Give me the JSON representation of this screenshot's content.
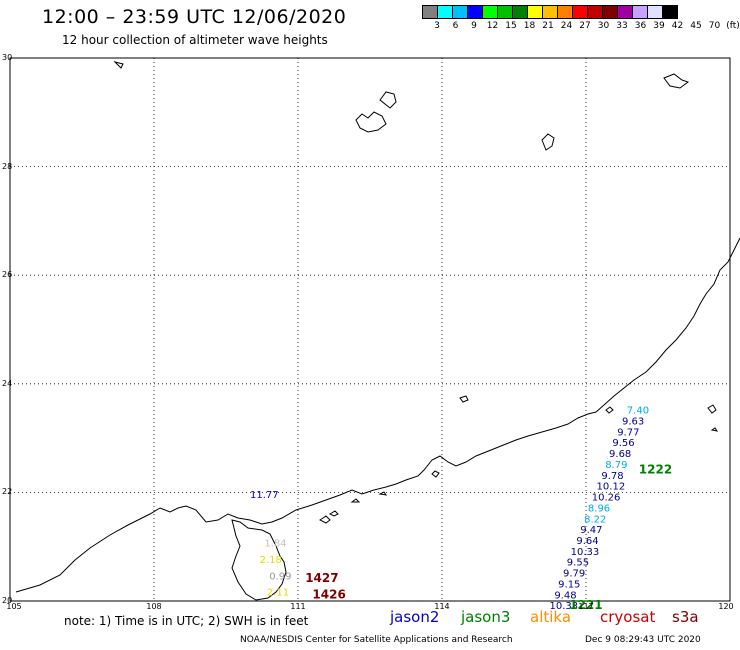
{
  "header": {
    "title": "12:00 – 23:59 UTC 12/06/2020",
    "subtitle": "12 hour collection of altimeter wave heights"
  },
  "legend": {
    "colors": [
      "#808080",
      "#00ffff",
      "#00bfff",
      "#0000ff",
      "#00ff00",
      "#00c000",
      "#008000",
      "#ffff00",
      "#ffc000",
      "#ff8000",
      "#ff0000",
      "#c00000",
      "#800000",
      "#a000a0",
      "#c8a0ff",
      "#e0e0ff",
      "#000000"
    ],
    "labels": [
      "3",
      "6",
      "9",
      "12",
      "15",
      "18",
      "21",
      "24",
      "27",
      "30",
      "33",
      "36",
      "39",
      "42",
      "45",
      "70",
      "(ft)"
    ]
  },
  "axes": {
    "lat_labels": [
      "30",
      "28",
      "26",
      "24",
      "22",
      "20"
    ],
    "lon_labels": [
      "105",
      "108",
      "111",
      "114",
      "117",
      "120"
    ]
  },
  "chart_data": {
    "type": "scatter",
    "xlim": [
      105,
      120
    ],
    "ylim": [
      20,
      30
    ],
    "wave_labels": [
      {
        "text": "7.40",
        "lon": 117.85,
        "lat": 23.45,
        "color": "#00aaee"
      },
      {
        "text": "9.63",
        "lon": 117.75,
        "lat": 23.25,
        "color": "#00008b"
      },
      {
        "text": "9.77",
        "lon": 117.65,
        "lat": 23.05,
        "color": "#00008b"
      },
      {
        "text": "9.56",
        "lon": 117.55,
        "lat": 22.85,
        "color": "#00008b"
      },
      {
        "text": "9.68",
        "lon": 117.48,
        "lat": 22.65,
        "color": "#00008b"
      },
      {
        "text": "8.79",
        "lon": 117.4,
        "lat": 22.45,
        "color": "#00aaee"
      },
      {
        "text": "9.78",
        "lon": 117.32,
        "lat": 22.25,
        "color": "#00008b"
      },
      {
        "text": "10.12",
        "lon": 117.22,
        "lat": 22.05,
        "color": "#00008b"
      },
      {
        "text": "10.26",
        "lon": 117.12,
        "lat": 21.85,
        "color": "#00008b"
      },
      {
        "text": "8.96",
        "lon": 117.04,
        "lat": 21.65,
        "color": "#00aaee"
      },
      {
        "text": "8.22",
        "lon": 116.96,
        "lat": 21.45,
        "color": "#00aaee"
      },
      {
        "text": "9.47",
        "lon": 116.88,
        "lat": 21.25,
        "color": "#00008b"
      },
      {
        "text": "9.64",
        "lon": 116.8,
        "lat": 21.05,
        "color": "#00008b"
      },
      {
        "text": "10.33",
        "lon": 116.68,
        "lat": 20.85,
        "color": "#00008b"
      },
      {
        "text": "9.55",
        "lon": 116.6,
        "lat": 20.65,
        "color": "#00008b"
      },
      {
        "text": "9.79",
        "lon": 116.52,
        "lat": 20.45,
        "color": "#00008b"
      },
      {
        "text": "9.15",
        "lon": 116.42,
        "lat": 20.25,
        "color": "#00008b"
      },
      {
        "text": "9.48",
        "lon": 116.34,
        "lat": 20.05,
        "color": "#00008b"
      },
      {
        "text": "10.33",
        "lon": 116.24,
        "lat": 19.85,
        "color": "#00008b"
      },
      {
        "text": "11.77",
        "lon": 110.0,
        "lat": 21.9,
        "color": "#0000cc"
      },
      {
        "text": "1.84",
        "lon": 110.3,
        "lat": 21.0,
        "color": "#c0c0c0"
      },
      {
        "text": "2.18",
        "lon": 110.2,
        "lat": 20.7,
        "color": "#dddd00"
      },
      {
        "text": "0.99",
        "lon": 110.4,
        "lat": 20.4,
        "color": "#999999"
      },
      {
        "text": "2.11",
        "lon": 110.35,
        "lat": 20.1,
        "color": "#dddd00"
      }
    ],
    "track_labels": [
      {
        "text": "1222",
        "lon": 118.1,
        "lat": 22.35,
        "color": "#008000"
      },
      {
        "text": "1221",
        "lon": 116.65,
        "lat": 19.85,
        "color": "#008000"
      },
      {
        "text": "1427",
        "lon": 111.15,
        "lat": 20.35,
        "color": "#800000"
      },
      {
        "text": "1426",
        "lon": 111.3,
        "lat": 20.05,
        "color": "#800000"
      }
    ]
  },
  "footer": {
    "note": "note:  1) Time is in UTC;  2) SWH is in feet",
    "satellites": [
      {
        "name": "jason2",
        "color": "#0000cc"
      },
      {
        "name": "jason3",
        "color": "#008000"
      },
      {
        "name": "altika",
        "color": "#ff8c00"
      },
      {
        "name": "cryosat",
        "color": "#cc0000"
      },
      {
        "name": "s3a",
        "color": "#800000"
      }
    ],
    "credit": "NOAA/NESDIS Center for Satellite Applications and Research",
    "timestamp": "Dec  9 08:29:43 UTC 2020"
  }
}
